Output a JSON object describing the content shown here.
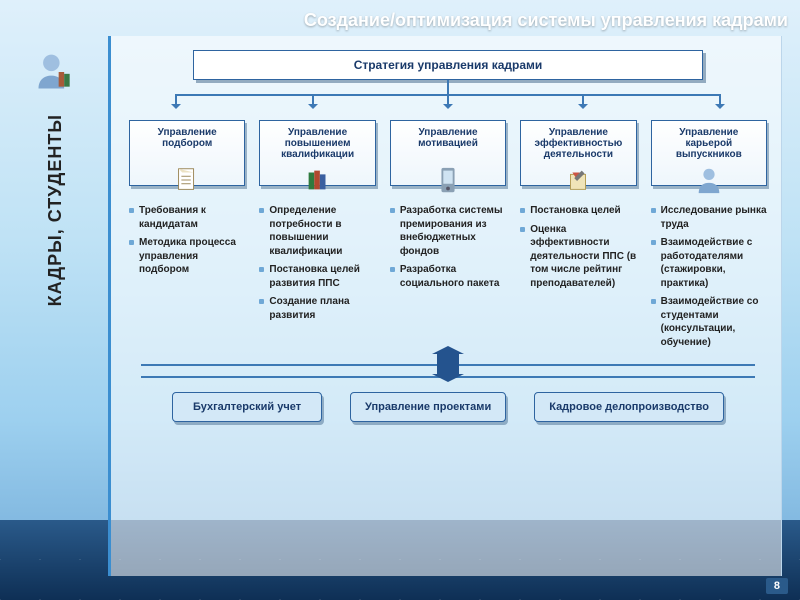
{
  "colors": {
    "accent": "#3d79b5",
    "boxBorder": "#2e64a0",
    "boxText": "#1a3a6a",
    "bulletMarker": "#6fa8d6",
    "bgGradient": [
      "#dff0fb",
      "#bfe2f5",
      "#9dd0ef",
      "#6fa8d6"
    ]
  },
  "slideTitle": "Создание/оптимизация системы управления кадрами",
  "sidebar": {
    "label": "КАДРЫ, СТУДЕНТЫ"
  },
  "strategyTitle": "Стратегия управления кадрами",
  "columns": [
    {
      "title": "Управление подбором",
      "icon": "document-icon",
      "bullets": [
        "Требования к кандидатам",
        "Методика процесса управления подбором"
      ]
    },
    {
      "title": "Управление повышением квалификации",
      "icon": "books-icon",
      "bullets": [
        "Определение потребности в повышении квалификации",
        "Постановка целей развития ППС",
        "Создание плана развития"
      ]
    },
    {
      "title": "Управление мотивацией",
      "icon": "phone-icon",
      "bullets": [
        "Разработка системы премирования из внебюджетных фондов",
        "Разработка социального пакета"
      ]
    },
    {
      "title": "Управление эффективностью деятельности",
      "icon": "tools-icon",
      "bullets": [
        "Постановка целей",
        "Оценка эффективности деятельности ППС (в том числе рейтинг преподавателей)"
      ]
    },
    {
      "title": "Управление карьерой выпускников",
      "icon": "person-icon",
      "bullets": [
        "Исследование рынка труда",
        "Взаимодействие с работодателями (стажировки, практика)",
        "Взаимодействие со студентами (консультации, обучение)"
      ]
    }
  ],
  "bottomBoxes": [
    "Бухгалтерский учет",
    "Управление проектами",
    "Кадровое делопроизводство"
  ],
  "pageNumber": "8",
  "layout": {
    "arrowPositionsPct": [
      3.5,
      27,
      50,
      73,
      96.5
    ],
    "columnGapPx": 14,
    "strategyBoxWidthPx": 510
  }
}
